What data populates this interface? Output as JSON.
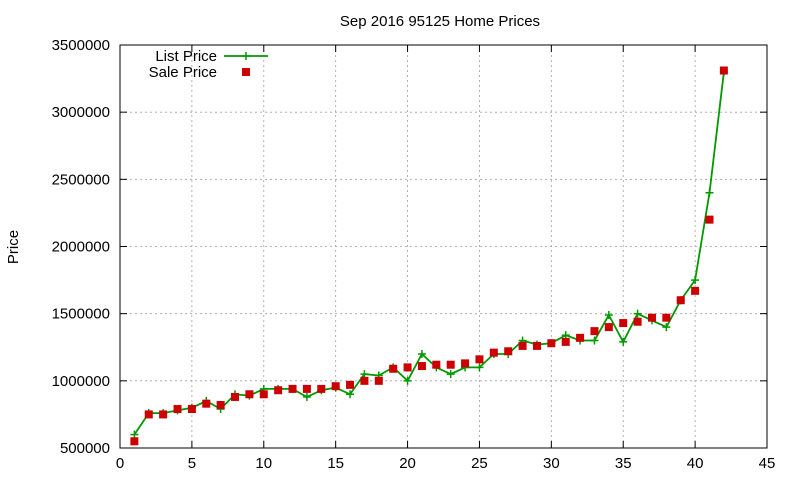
{
  "chart_data": {
    "type": "line",
    "title": "Sep 2016 95125 Home Prices",
    "xlabel": "",
    "ylabel": "Price",
    "xlim": [
      0,
      45
    ],
    "ylim": [
      500000,
      3500000
    ],
    "xticks": [
      0,
      5,
      10,
      15,
      20,
      25,
      30,
      35,
      40,
      45
    ],
    "yticks": [
      500000,
      1000000,
      1500000,
      2000000,
      2500000,
      3000000,
      3500000
    ],
    "xtick_labels": [
      "0",
      "5",
      "10",
      "15",
      "20",
      "25",
      "30",
      "35",
      "40",
      "45"
    ],
    "ytick_labels": [
      "500000",
      "1000000",
      "1500000",
      "2000000",
      "2500000",
      "3000000",
      "3500000"
    ],
    "grid": true,
    "legend_position": "top-left",
    "x": [
      1,
      2,
      3,
      4,
      5,
      6,
      7,
      8,
      9,
      10,
      11,
      12,
      13,
      14,
      15,
      16,
      17,
      18,
      19,
      20,
      21,
      22,
      23,
      24,
      25,
      26,
      27,
      28,
      29,
      30,
      31,
      32,
      33,
      34,
      35,
      36,
      37,
      38,
      39,
      40,
      41,
      42
    ],
    "series": [
      {
        "name": "List Price",
        "style": "line-plus",
        "color": "#009900",
        "values": [
          600000,
          760000,
          760000,
          780000,
          800000,
          850000,
          790000,
          900000,
          890000,
          940000,
          940000,
          940000,
          880000,
          930000,
          950000,
          900000,
          1050000,
          1040000,
          1100000,
          1000000,
          1200000,
          1100000,
          1050000,
          1100000,
          1100000,
          1200000,
          1200000,
          1300000,
          1270000,
          1280000,
          1340000,
          1300000,
          1300000,
          1490000,
          1290000,
          1500000,
          1450000,
          1400000,
          1600000,
          1750000,
          2400000,
          3300000
        ]
      },
      {
        "name": "Sale Price",
        "style": "square",
        "color": "#cc0000",
        "values": [
          550000,
          750000,
          750000,
          790000,
          790000,
          830000,
          820000,
          880000,
          900000,
          900000,
          930000,
          940000,
          940000,
          940000,
          960000,
          970000,
          1000000,
          1000000,
          1090000,
          1100000,
          1110000,
          1120000,
          1120000,
          1130000,
          1160000,
          1210000,
          1220000,
          1260000,
          1260000,
          1280000,
          1290000,
          1320000,
          1370000,
          1400000,
          1430000,
          1440000,
          1470000,
          1470000,
          1600000,
          1670000,
          2200000,
          3310000
        ]
      }
    ]
  }
}
